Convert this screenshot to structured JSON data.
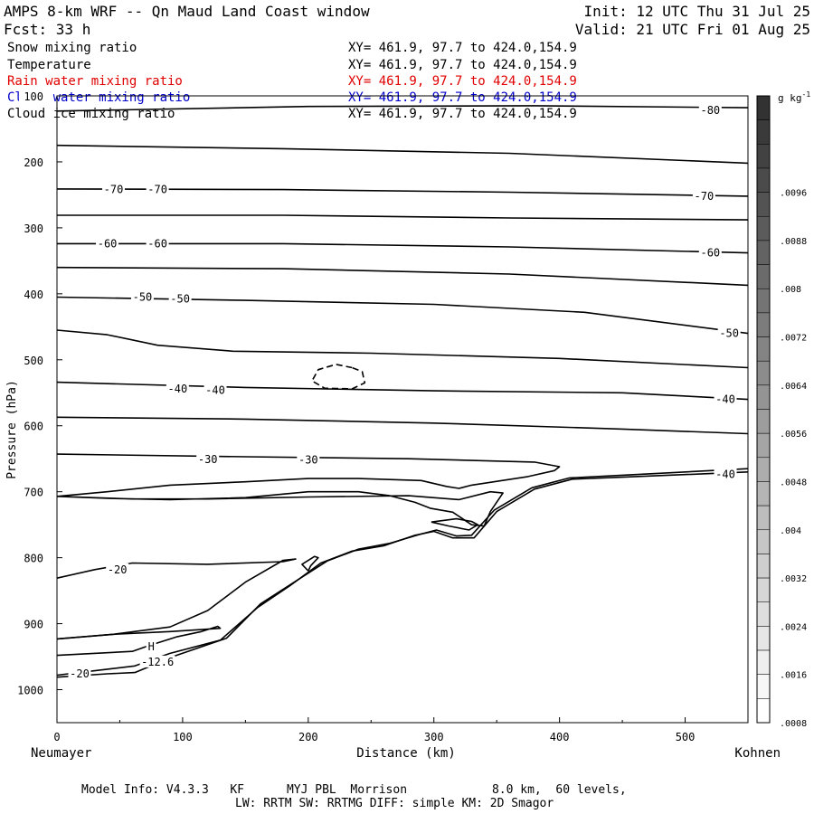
{
  "header": {
    "title": "AMPS 8-km WRF -- Qn Maud Land Coast window",
    "forecast": "Fcst:    33 h",
    "init": "Init: 12 UTC Thu 31 Jul 25",
    "valid": "Valid: 21 UTC Fri 01 Aug 25"
  },
  "fields": [
    {
      "name": "Snow mixing ratio",
      "xy": "XY= 461.9, 97.7 to 424.0,154.9",
      "color": "#000000"
    },
    {
      "name": "Temperature",
      "xy": "XY= 461.9, 97.7 to 424.0,154.9",
      "color": "#000000"
    },
    {
      "name": "Rain water mixing ratio",
      "xy": "XY= 461.9, 97.7 to 424.0,154.9",
      "color": "#e00000"
    },
    {
      "name": "Cloud water mixing ratio",
      "xy": "XY= 461.9, 97.7 to 424.0,154.9",
      "color": "#0000cc"
    },
    {
      "name": "Cloud ice mixing ratio",
      "xy": "XY= 461.9, 97.7 to 424.0,154.9",
      "color": "#000000"
    }
  ],
  "footer": {
    "model_line1": "Model Info: V4.3.3   KF      MYJ PBL  Morrison            8.0 km,  60 levels,",
    "model_line2": "LW: RRTM SW: RRTMG   DIFF: simple KM: 2D Smagor"
  },
  "chart_data": {
    "type": "line",
    "title": "AMPS 8-km WRF -- Qn Maud Land Coast window",
    "xlabel": "Distance (km)",
    "ylabel": "Pressure (hPa)",
    "x_range": [
      0,
      550
    ],
    "y_range": [
      100,
      1050
    ],
    "y_inverted": true,
    "x_ticks": [
      0,
      100,
      200,
      300,
      400,
      500
    ],
    "y_ticks": [
      100,
      200,
      300,
      400,
      500,
      600,
      700,
      800,
      900,
      1000
    ],
    "x_end_labels": {
      "left": "Neumayer",
      "right": "Kohnen"
    },
    "grid": false,
    "colorbar": {
      "unit_label": "g kg",
      "unit_exponent": "-1",
      "ticks": [
        ".0096",
        ".0088",
        ".008",
        ".0072",
        ".0064",
        ".0056",
        ".0048",
        ".004",
        ".0032",
        ".0024",
        ".0016",
        ".0008"
      ]
    },
    "isotherm_labels": [
      {
        "text": "-80",
        "x": 520,
        "p": 122
      },
      {
        "text": "-70",
        "x": 45,
        "p": 242
      },
      {
        "text": "-70",
        "x": 80,
        "p": 242
      },
      {
        "text": "-70",
        "x": 515,
        "p": 252
      },
      {
        "text": "-60",
        "x": 40,
        "p": 324
      },
      {
        "text": "-60",
        "x": 80,
        "p": 324
      },
      {
        "text": "-60",
        "x": 520,
        "p": 338
      },
      {
        "text": "-50",
        "x": 68,
        "p": 405
      },
      {
        "text": "-50",
        "x": 98,
        "p": 408
      },
      {
        "text": "-50",
        "x": 535,
        "p": 460
      },
      {
        "text": "-40",
        "x": 96,
        "p": 544
      },
      {
        "text": "-40",
        "x": 126,
        "p": 546
      },
      {
        "text": "-40",
        "x": 532,
        "p": 560
      },
      {
        "text": "-30",
        "x": 120,
        "p": 651
      },
      {
        "text": "-30",
        "x": 200,
        "p": 652
      },
      {
        "text": "-40",
        "x": 532,
        "p": 674
      },
      {
        "text": "-20",
        "x": 48,
        "p": 818
      },
      {
        "text": "-20",
        "x": 18,
        "p": 976
      },
      {
        "text": "-12.6",
        "x": 80,
        "p": 958
      },
      {
        "text": "H",
        "x": 75,
        "p": 935
      }
    ],
    "series": [
      {
        "values": [
          [
            0,
            123
          ],
          [
            200,
            116
          ],
          [
            380,
            115
          ],
          [
            550,
            118
          ]
        ]
      },
      {
        "values": [
          [
            0,
            175
          ],
          [
            180,
            180
          ],
          [
            360,
            187
          ],
          [
            550,
            202
          ]
        ]
      },
      {
        "values": [
          [
            0,
            241
          ],
          [
            180,
            242
          ],
          [
            360,
            246
          ],
          [
            550,
            252
          ]
        ]
      },
      {
        "values": [
          [
            0,
            281
          ],
          [
            180,
            281
          ],
          [
            360,
            285
          ],
          [
            550,
            288
          ]
        ]
      },
      {
        "values": [
          [
            0,
            324
          ],
          [
            180,
            324
          ],
          [
            360,
            329
          ],
          [
            550,
            338
          ]
        ]
      },
      {
        "values": [
          [
            0,
            360
          ],
          [
            180,
            362
          ],
          [
            360,
            370
          ],
          [
            550,
            387
          ]
        ]
      },
      {
        "values": [
          [
            0,
            405
          ],
          [
            150,
            410
          ],
          [
            300,
            416
          ],
          [
            420,
            428
          ],
          [
            550,
            460
          ]
        ]
      },
      {
        "values": [
          [
            0,
            455
          ],
          [
            40,
            462
          ],
          [
            80,
            478
          ],
          [
            140,
            487
          ],
          [
            250,
            490
          ],
          [
            400,
            498
          ],
          [
            550,
            512
          ]
        ]
      },
      {
        "values": [
          [
            0,
            534
          ],
          [
            150,
            542
          ],
          [
            300,
            547
          ],
          [
            450,
            550
          ],
          [
            550,
            560
          ]
        ]
      },
      {
        "values": [
          [
            0,
            587
          ],
          [
            150,
            590
          ],
          [
            300,
            596
          ],
          [
            450,
            605
          ],
          [
            550,
            612
          ]
        ]
      },
      {
        "values": [
          [
            0,
            643
          ],
          [
            150,
            647
          ],
          [
            280,
            650
          ],
          [
            380,
            655
          ],
          [
            400,
            662
          ],
          [
            396,
            668
          ],
          [
            375,
            677
          ],
          [
            330,
            690
          ],
          [
            320,
            695
          ],
          [
            310,
            692
          ],
          [
            290,
            683
          ],
          [
            240,
            680
          ],
          [
            200,
            680
          ],
          [
            150,
            685
          ],
          [
            90,
            690
          ],
          [
            40,
            700
          ],
          [
            0,
            707
          ]
        ]
      },
      {
        "values": [
          [
            0,
            707
          ],
          [
            60,
            711
          ],
          [
            120,
            711
          ],
          [
            200,
            708
          ],
          [
            280,
            706
          ],
          [
            320,
            712
          ],
          [
            345,
            700
          ],
          [
            355,
            702
          ],
          [
            345,
            730
          ],
          [
            340,
            752
          ],
          [
            330,
            750
          ],
          [
            315,
            731
          ],
          [
            297,
            725
          ],
          [
            285,
            716
          ],
          [
            265,
            706
          ],
          [
            240,
            700
          ],
          [
            200,
            700
          ],
          [
            150,
            709
          ],
          [
            90,
            712
          ],
          [
            40,
            710
          ],
          [
            0,
            707
          ]
        ]
      },
      {
        "values": [
          [
            0,
            831
          ],
          [
            30,
            818
          ],
          [
            60,
            808
          ],
          [
            120,
            810
          ],
          [
            180,
            806
          ],
          [
            190,
            802
          ],
          [
            180,
            804
          ],
          [
            150,
            837
          ],
          [
            120,
            880
          ],
          [
            90,
            905
          ],
          [
            45,
            916
          ],
          [
            0,
            923
          ]
        ]
      },
      {
        "values": [
          [
            0,
            923
          ],
          [
            45,
            916
          ],
          [
            90,
            912
          ],
          [
            130,
            907
          ],
          [
            128,
            904
          ],
          [
            115,
            912
          ],
          [
            95,
            920
          ],
          [
            72,
            934
          ],
          [
            60,
            942
          ],
          [
            0,
            948
          ]
        ]
      },
      {
        "values": [
          [
            0,
            978
          ],
          [
            40,
            969
          ],
          [
            62,
            964
          ],
          [
            90,
            945
          ],
          [
            130,
            925
          ],
          [
            160,
            875
          ],
          [
            185,
            843
          ],
          [
            210,
            808
          ],
          [
            235,
            790
          ],
          [
            260,
            782
          ],
          [
            285,
            766
          ],
          [
            300,
            760
          ],
          [
            315,
            770
          ],
          [
            332,
            770
          ],
          [
            350,
            730
          ],
          [
            380,
            696
          ],
          [
            410,
            681
          ],
          [
            450,
            678
          ],
          [
            550,
            670
          ]
        ]
      },
      {
        "values": [
          [
            0,
            981
          ],
          [
            40,
            976
          ],
          [
            62,
            974
          ],
          [
            95,
            948
          ],
          [
            135,
            922
          ],
          [
            162,
            870
          ],
          [
            188,
            838
          ],
          [
            215,
            805
          ],
          [
            240,
            787
          ],
          [
            265,
            778
          ],
          [
            290,
            764
          ],
          [
            302,
            758
          ],
          [
            318,
            767
          ],
          [
            330,
            766
          ],
          [
            348,
            728
          ],
          [
            378,
            694
          ],
          [
            408,
            679
          ],
          [
            450,
            675
          ],
          [
            550,
            665
          ]
        ]
      },
      {
        "values": [
          [
            235,
            512
          ],
          [
            222,
            507
          ],
          [
            208,
            515
          ],
          [
            203,
            532
          ],
          [
            213,
            543
          ],
          [
            235,
            544
          ],
          [
            245,
            535
          ],
          [
            243,
            518
          ],
          [
            235,
            512
          ]
        ],
        "dashed": true
      },
      {
        "values": [
          [
            200,
            820
          ],
          [
            195,
            810
          ],
          [
            205,
            798
          ],
          [
            208,
            800
          ],
          [
            202,
            812
          ],
          [
            200,
            820
          ]
        ]
      },
      {
        "values": [
          [
            298,
            746
          ],
          [
            312,
            752
          ],
          [
            328,
            758
          ],
          [
            335,
            750
          ],
          [
            330,
            745
          ],
          [
            318,
            741
          ],
          [
            298,
            746
          ]
        ]
      }
    ]
  }
}
